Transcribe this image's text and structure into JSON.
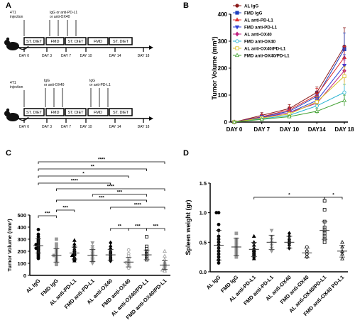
{
  "panels": {
    "a": "A",
    "b": "B",
    "c": "C",
    "d": "D"
  },
  "schedule": {
    "top": {
      "injection_text": [
        "4T1",
        "injection"
      ],
      "treatment_text": [
        "IgG or anti-PD-L1",
        "or anti-OX40"
      ],
      "boxes": [
        "ST. DIET",
        "FMD",
        "ST. DIET",
        "FMD",
        "ST. DIET"
      ],
      "days": [
        "DAY 0",
        "DAY 3",
        "DAY 7",
        "DAY 10",
        "DAY 14",
        "DAY 18"
      ]
    },
    "bottom": {
      "injection_text": [
        "4T1",
        "injection"
      ],
      "treatment1_text": [
        "IgG",
        "or anti-OX40"
      ],
      "treatment2_text": [
        "IgG",
        "or anti-PD-L1"
      ],
      "boxes": [
        "ST. DIET",
        "FMD",
        "ST. DIET",
        "FMD",
        "ST. DIET"
      ],
      "days": [
        "DAY 0",
        "DAY 3",
        "DAY 7",
        "DAY 10",
        "DAY 14",
        "DAY 18"
      ]
    }
  },
  "chart_data": [
    {
      "type": "line",
      "panel": "B",
      "ylabel": "Tumor Volume (mm³)",
      "categories": [
        "DAY 0",
        "DAY 7",
        "DAY 10",
        "DAY14",
        "DAY 18"
      ],
      "ylim": [
        0,
        400
      ],
      "yticks": [
        0,
        100,
        200,
        300,
        400
      ],
      "series": [
        {
          "name": "AL IgG",
          "color": "#8b1a1a",
          "marker": "circle",
          "values": [
            0,
            25,
            50,
            110,
            280
          ],
          "err": [
            0,
            10,
            15,
            20,
            70
          ]
        },
        {
          "name": "FMD IgG",
          "color": "#1f3fbf",
          "marker": "square",
          "values": [
            0,
            20,
            40,
            95,
            270
          ],
          "err": [
            0,
            8,
            12,
            20,
            60
          ]
        },
        {
          "name": "AL anti-PD-L1",
          "color": "#e03030",
          "marker": "triangle",
          "values": [
            0,
            20,
            45,
            100,
            240
          ],
          "err": [
            0,
            8,
            12,
            25,
            40
          ]
        },
        {
          "name": "FMD anti-PD-L1",
          "color": "#2f3fd6",
          "marker": "triangle-down",
          "values": [
            0,
            18,
            35,
            80,
            210
          ],
          "err": [
            0,
            6,
            10,
            20,
            40
          ]
        },
        {
          "name": "AL anti-OX40",
          "color": "#c02080",
          "marker": "diamond",
          "values": [
            0,
            15,
            35,
            70,
            190
          ],
          "err": [
            0,
            6,
            10,
            18,
            40
          ]
        },
        {
          "name": "FMD anti-OX40",
          "color": "#20b0d0",
          "marker": "circle-open",
          "values": [
            0,
            12,
            25,
            60,
            110
          ],
          "err": [
            0,
            5,
            8,
            15,
            30
          ]
        },
        {
          "name": "AL anti-OX40/PD-L1",
          "color": "#d8c020",
          "marker": "square-open",
          "values": [
            0,
            15,
            30,
            75,
            170
          ],
          "err": [
            0,
            6,
            10,
            18,
            35
          ]
        },
        {
          "name": "FMD anti-OX40/PD-L1",
          "color": "#40a030",
          "marker": "triangle-open",
          "values": [
            0,
            10,
            20,
            40,
            80
          ],
          "err": [
            0,
            4,
            6,
            10,
            20
          ]
        }
      ]
    },
    {
      "type": "scatter",
      "panel": "C",
      "ylabel": "Tumor Volume (mm³)",
      "ylim": [
        0,
        500
      ],
      "yticks": [
        0,
        100,
        200,
        300,
        400,
        500
      ],
      "categories": [
        "AL IgG",
        "FMD IgG",
        "AL anti-PD-L1",
        "FMD anti-PD-L1",
        "AL anti-OX40",
        "FMD anti-OX40",
        "AL anti-OX40/PD-L1",
        "FMD anti-OX40/PD-L1"
      ],
      "groups": [
        {
          "name": "AL IgG",
          "color": "#000000",
          "marker": "circle",
          "mean": 245,
          "sd": 60,
          "points": [
            380,
            340,
            320,
            300,
            290,
            280,
            270,
            260,
            255,
            250,
            245,
            240,
            235,
            230,
            225,
            220,
            215,
            210,
            200,
            190,
            180,
            170,
            160,
            150,
            140
          ]
        },
        {
          "name": "FMD IgG",
          "color": "#9a9a9a",
          "marker": "square",
          "mean": 165,
          "sd": 55,
          "points": [
            300,
            260,
            240,
            220,
            210,
            200,
            190,
            180,
            170,
            165,
            160,
            150,
            140,
            130,
            120,
            110,
            100,
            90
          ]
        },
        {
          "name": "AL anti-PD-L1",
          "color": "#000000",
          "marker": "triangle",
          "mean": 185,
          "sd": 50,
          "points": [
            290,
            260,
            240,
            220,
            205,
            195,
            185,
            180,
            170,
            165,
            150,
            140,
            130,
            120
          ]
        },
        {
          "name": "FMD anti-PD-L1",
          "color": "#9a9a9a",
          "marker": "triangle-down",
          "mean": 165,
          "sd": 50,
          "points": [
            270,
            240,
            220,
            200,
            185,
            175,
            165,
            155,
            140,
            130,
            120,
            110,
            100
          ]
        },
        {
          "name": "AL anti-OX40",
          "color": "#000000",
          "marker": "diamond",
          "mean": 170,
          "sd": 45,
          "points": [
            270,
            240,
            220,
            200,
            190,
            180,
            170,
            160,
            150,
            140,
            130,
            120
          ]
        },
        {
          "name": "FMD anti-OX40",
          "color": "#9a9a9a",
          "marker": "circle-open",
          "mean": 110,
          "sd": 40,
          "points": [
            210,
            180,
            160,
            140,
            120,
            110,
            105,
            100,
            95,
            90,
            80,
            70,
            60
          ]
        },
        {
          "name": "AL anti-OX40/PD-L1",
          "color": "#000000",
          "marker": "square-open",
          "mean": 170,
          "sd": 40,
          "points": [
            320,
            240,
            220,
            200,
            190,
            180,
            170,
            160,
            150,
            140,
            130
          ]
        },
        {
          "name": "FMD anti-OX40/PD-L1",
          "color": "#9a9a9a",
          "marker": "triangle-open",
          "mean": 85,
          "sd": 35,
          "points": [
            200,
            160,
            130,
            110,
            100,
            95,
            90,
            85,
            80,
            70,
            60,
            50,
            45,
            40,
            35
          ]
        }
      ],
      "significance": [
        {
          "from": 0,
          "to": 7,
          "label": "****"
        },
        {
          "from": 0,
          "to": 6,
          "label": "**"
        },
        {
          "from": 0,
          "to": 5,
          "label": "*"
        },
        {
          "from": 0,
          "to": 4,
          "label": "****"
        },
        {
          "from": 1,
          "to": 7,
          "label": "****"
        },
        {
          "from": 3,
          "to": 6,
          "label": "***"
        },
        {
          "from": 1,
          "to": 6,
          "label": "***"
        },
        {
          "from": 4,
          "to": 7,
          "label": "****"
        },
        {
          "from": 0,
          "to": 1,
          "label": "***"
        },
        {
          "from": 1,
          "to": 2,
          "label": "***"
        },
        {
          "from": 4,
          "to": 5,
          "label": "**"
        },
        {
          "from": 5,
          "to": 6,
          "label": "***"
        },
        {
          "from": 6,
          "to": 7,
          "label": "***"
        }
      ]
    },
    {
      "type": "scatter",
      "panel": "D",
      "ylabel": "Spleen  weight (gr)",
      "ylim": [
        0,
        1.5
      ],
      "yticks": [
        0.0,
        0.5,
        1.0,
        1.5
      ],
      "categories": [
        "AL IgG",
        "FMD IgG",
        "AL anti-PD-L1",
        "FMD anti-PD-L1",
        "AL anti-OX40",
        "FMD anti-OX40",
        "AL anti-OX40/PD-L1",
        "FMD anti-OX40 PD-L1"
      ],
      "groups": [
        {
          "name": "AL IgG",
          "color": "#000000",
          "marker": "circle",
          "mean": 0.45,
          "sd": 0.25,
          "points": [
            1.0,
            1.0,
            0.8,
            0.7,
            0.6,
            0.55,
            0.5,
            0.45,
            0.4,
            0.35,
            0.3,
            0.25,
            0.2,
            0.15
          ]
        },
        {
          "name": "FMD IgG",
          "color": "#9a9a9a",
          "marker": "square",
          "mean": 0.42,
          "sd": 0.15,
          "points": [
            0.65,
            0.55,
            0.5,
            0.45,
            0.4,
            0.35,
            0.3,
            0.25
          ]
        },
        {
          "name": "AL anti-PD-L1",
          "color": "#000000",
          "marker": "triangle",
          "mean": 0.38,
          "sd": 0.12,
          "points": [
            0.6,
            0.5,
            0.45,
            0.4,
            0.38,
            0.36,
            0.34,
            0.32,
            0.3,
            0.28,
            0.25,
            0.22
          ]
        },
        {
          "name": "FMD anti-PD-L1",
          "color": "#9a9a9a",
          "marker": "triangle-down",
          "mean": 0.5,
          "sd": 0.12,
          "points": [
            0.7,
            0.6,
            0.55,
            0.5,
            0.45,
            0.4,
            0.35
          ]
        },
        {
          "name": "AL anti-OX40",
          "color": "#000000",
          "marker": "diamond",
          "mean": 0.5,
          "sd": 0.1,
          "points": [
            0.65,
            0.6,
            0.55,
            0.52,
            0.5,
            0.48,
            0.45,
            0.4
          ]
        },
        {
          "name": "FMD anti-OX40",
          "color": "#000000",
          "marker": "circle-open",
          "mean": 0.32,
          "sd": 0.08,
          "points": [
            0.42,
            0.35,
            0.3,
            0.25
          ]
        },
        {
          "name": "AL anti-OX40/PD-L1",
          "color": "#000000",
          "marker": "square-open",
          "mean": 0.7,
          "sd": 0.15,
          "points": [
            1.2,
            1.05,
            0.85,
            0.75,
            0.7,
            0.65,
            0.6,
            0.55,
            0.5
          ]
        },
        {
          "name": "FMD anti-OX40 PD-L1",
          "color": "#000000",
          "marker": "triangle-open",
          "mean": 0.35,
          "sd": 0.1,
          "points": [
            0.5,
            0.42,
            0.35,
            0.3,
            0.22
          ]
        }
      ],
      "significance": [
        {
          "from": 2,
          "to": 6,
          "label": "*"
        },
        {
          "from": 6,
          "to": 7,
          "label": "*"
        }
      ]
    }
  ]
}
